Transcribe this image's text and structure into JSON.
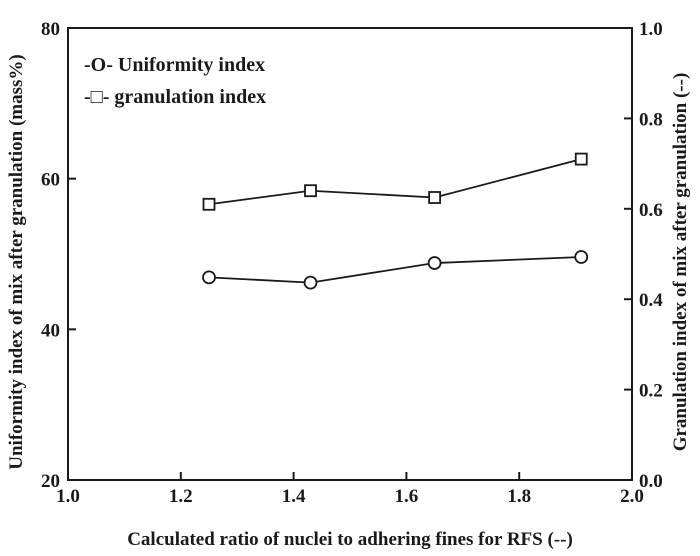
{
  "chart_data": {
    "type": "line",
    "title": "",
    "xlabel": "Calculated ratio of nuclei to adhering fines for RFS (--)",
    "ylabel": "Uniformity index of mix after granulation (mass%)",
    "y2label": "Granulation index of mix after granulation (--)",
    "xlim": [
      1.0,
      2.0
    ],
    "ylim": [
      20,
      80
    ],
    "y2lim": [
      0.0,
      1.0
    ],
    "x_ticks": [
      "1.0",
      "1.2",
      "1.4",
      "1.6",
      "1.8",
      "2.0"
    ],
    "y_ticks": [
      "20",
      "40",
      "60",
      "80"
    ],
    "y2_ticks": [
      "0.0",
      "0.2",
      "0.4",
      "0.6",
      "0.8",
      "1.0"
    ],
    "legend_position": "top-left",
    "series": [
      {
        "name": "Uniformity index",
        "legend_label": "-O- Uniformity index",
        "axis": "left",
        "marker": "circle",
        "x": [
          1.25,
          1.43,
          1.65,
          1.91
        ],
        "values": [
          46.9,
          46.2,
          48.8,
          49.6
        ]
      },
      {
        "name": "granulation index",
        "legend_label": "-□- granulation index",
        "axis": "right",
        "marker": "square",
        "x": [
          1.25,
          1.43,
          1.65,
          1.91
        ],
        "values": [
          0.61,
          0.64,
          0.625,
          0.71
        ]
      }
    ]
  }
}
